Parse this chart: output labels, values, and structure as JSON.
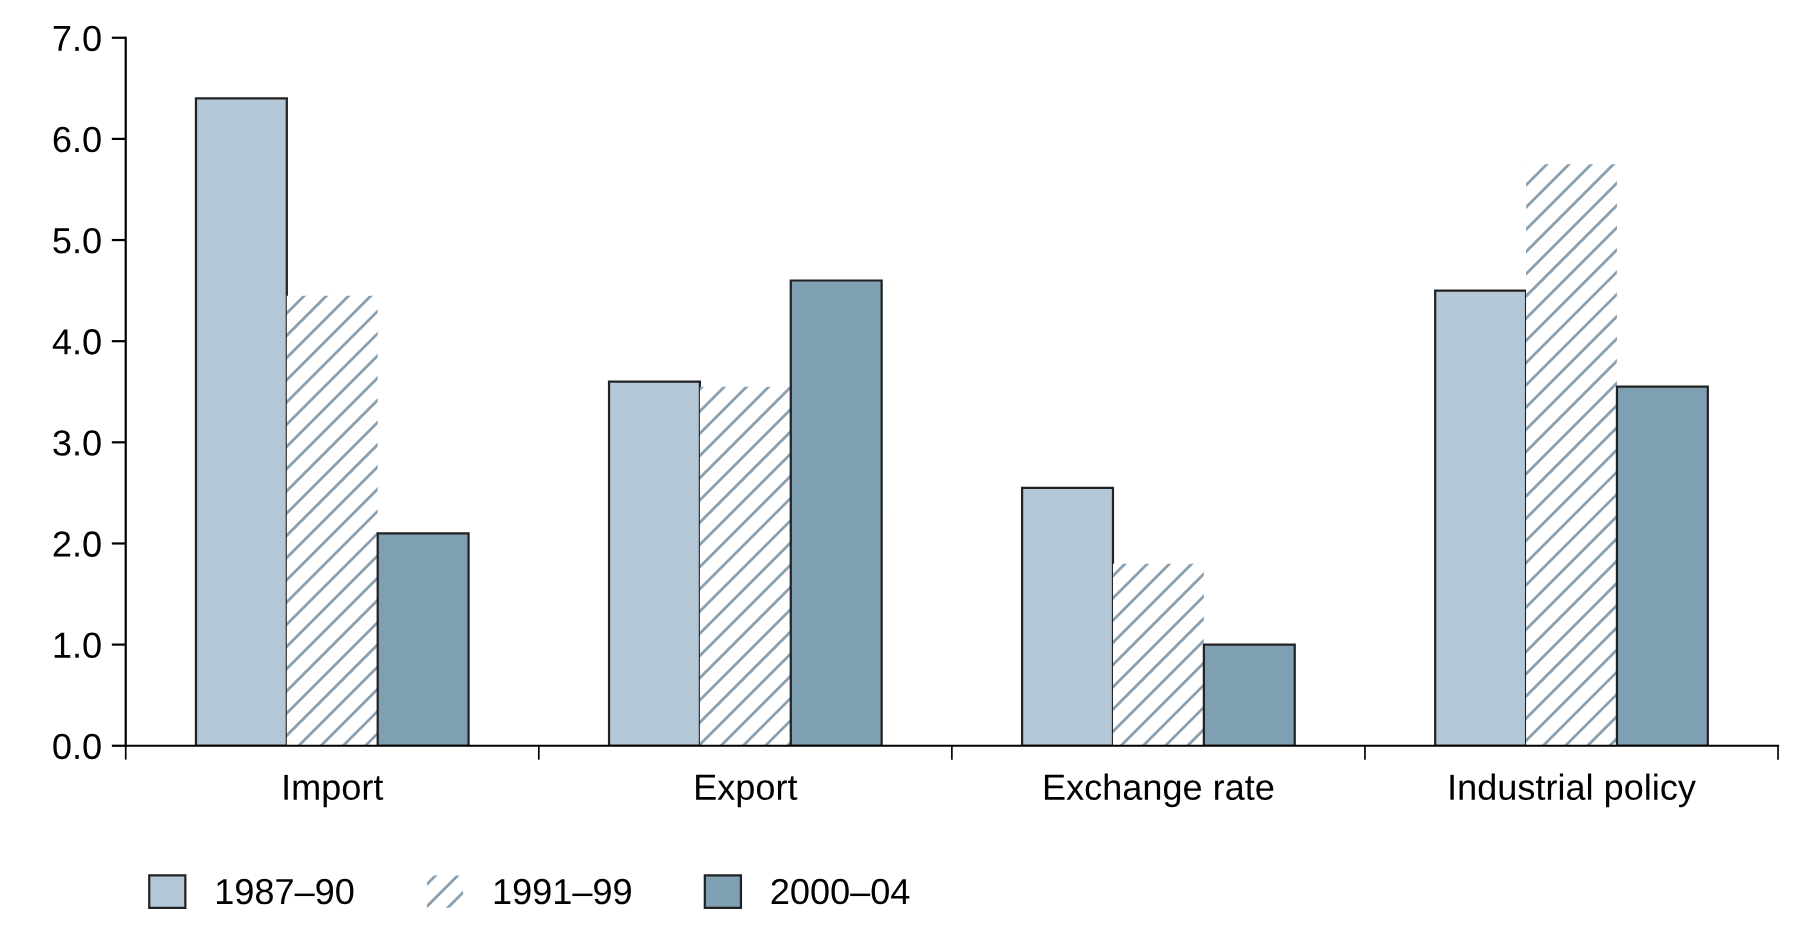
{
  "chart_data": {
    "type": "bar",
    "categories": [
      "Import",
      "Export",
      "Exchange rate",
      "Industrial policy"
    ],
    "series": [
      {
        "name": "1987–90",
        "color": "#b4c7d6",
        "values": [
          6.4,
          3.6,
          2.55,
          4.5
        ]
      },
      {
        "name": "1991–99",
        "color": "#ffffff",
        "values": [
          4.45,
          3.55,
          1.8,
          5.75
        ]
      },
      {
        "name": "2000–04",
        "color": "#7f9fb3",
        "values": [
          2.1,
          4.6,
          1.0,
          3.55
        ]
      }
    ],
    "ylim": [
      0,
      7
    ],
    "yticks": [
      {
        "value": 0,
        "label": "0.0"
      },
      {
        "value": 1,
        "label": "1.0"
      },
      {
        "value": 2,
        "label": "2.0"
      },
      {
        "value": 3,
        "label": "3.0"
      },
      {
        "value": 4,
        "label": "4.0"
      },
      {
        "value": 5,
        "label": "5.0"
      },
      {
        "value": 6,
        "label": "6.0"
      },
      {
        "value": 7,
        "label": "7.0"
      }
    ],
    "grid": false,
    "legend": "bottom left"
  }
}
